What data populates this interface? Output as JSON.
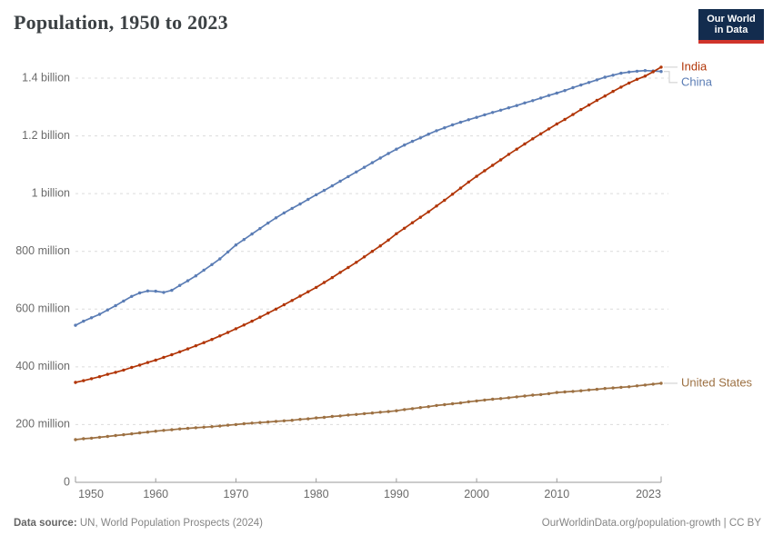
{
  "header": {
    "title": "Population, 1950 to 2023",
    "logo": {
      "line1": "Our World",
      "line2": "in Data"
    }
  },
  "footer": {
    "source_label": "Data source:",
    "source_text": " UN, World Population Prospects (2024)",
    "right_text": "OurWorldinData.org/population-growth | CC BY"
  },
  "colors": {
    "india": "#b13507",
    "china": "#5b7db5",
    "united_states": "#9d7143",
    "grid": "#dcdcdc",
    "axis": "#9a9a9a",
    "tick_text": "#6b6b6b",
    "connector": "#cccccc",
    "logo_bg": "#132c4e",
    "logo_red": "#d0342c"
  },
  "chart_data": {
    "type": "line",
    "title": "Population, 1950 to 2023",
    "unit": "people",
    "xlabel": "",
    "ylabel": "",
    "xlim": [
      1950,
      2023
    ],
    "ylim": [
      0,
      1400000000
    ],
    "grid": "horizontal-dashed",
    "legend_position": "right-end-labels",
    "xticks": [
      1950,
      1960,
      1970,
      1980,
      1990,
      2000,
      2010,
      2023
    ],
    "yticks_millions": [
      0,
      200,
      400,
      600,
      800,
      1000,
      1200,
      1400
    ],
    "ytick_labels": [
      "0",
      "200 million",
      "400 million",
      "600 million",
      "800 million",
      "1 billion",
      "1.2 billion",
      "1.4 billion"
    ],
    "x": [
      1950,
      1951,
      1952,
      1953,
      1954,
      1955,
      1956,
      1957,
      1958,
      1959,
      1960,
      1961,
      1962,
      1963,
      1964,
      1965,
      1966,
      1967,
      1968,
      1969,
      1970,
      1971,
      1972,
      1973,
      1974,
      1975,
      1976,
      1977,
      1978,
      1979,
      1980,
      1981,
      1982,
      1983,
      1984,
      1985,
      1986,
      1987,
      1988,
      1989,
      1990,
      1991,
      1992,
      1993,
      1994,
      1995,
      1996,
      1997,
      1998,
      1999,
      2000,
      2001,
      2002,
      2003,
      2004,
      2005,
      2006,
      2007,
      2008,
      2009,
      2010,
      2011,
      2012,
      2013,
      2014,
      2015,
      2016,
      2017,
      2018,
      2019,
      2020,
      2021,
      2022,
      2023
    ],
    "series": [
      {
        "name": "India",
        "color": "#b13507",
        "values_millions": [
          346,
          352,
          359,
          366,
          374,
          381,
          389,
          398,
          406,
          415,
          423,
          433,
          442,
          452,
          462,
          473,
          484,
          495,
          507,
          519,
          532,
          545,
          558,
          572,
          586,
          600,
          615,
          630,
          645,
          660,
          675,
          692,
          709,
          727,
          744,
          762,
          781,
          800,
          819,
          839,
          861,
          880,
          899,
          918,
          937,
          957,
          977,
          998,
          1019,
          1040,
          1060,
          1079,
          1098,
          1117,
          1136,
          1154,
          1172,
          1190,
          1207,
          1224,
          1241,
          1257,
          1274,
          1291,
          1307,
          1323,
          1338,
          1354,
          1369,
          1383,
          1396,
          1407,
          1422,
          1438
        ]
      },
      {
        "name": "China",
        "color": "#5b7db5",
        "values_millions": [
          544,
          558,
          570,
          582,
          597,
          612,
          628,
          644,
          656,
          663,
          662,
          658,
          665,
          682,
          698,
          715,
          735,
          754,
          774,
          798,
          822,
          841,
          860,
          879,
          898,
          916,
          933,
          949,
          964,
          980,
          996,
          1011,
          1027,
          1043,
          1059,
          1075,
          1091,
          1107,
          1123,
          1139,
          1154,
          1168,
          1181,
          1193,
          1206,
          1218,
          1228,
          1238,
          1247,
          1256,
          1264,
          1273,
          1281,
          1289,
          1297,
          1305,
          1314,
          1322,
          1331,
          1340,
          1348,
          1357,
          1367,
          1376,
          1385,
          1394,
          1403,
          1410,
          1417,
          1421,
          1424,
          1426,
          1425,
          1423
        ]
      },
      {
        "name": "United States",
        "color": "#9d7143",
        "values_millions": [
          148,
          151,
          153,
          156,
          159,
          162,
          165,
          168,
          171,
          174,
          177,
          180,
          182,
          185,
          187,
          189,
          191,
          193,
          195,
          198,
          200,
          203,
          205,
          207,
          209,
          211,
          213,
          215,
          218,
          220,
          223,
          225,
          228,
          230,
          233,
          235,
          238,
          240,
          243,
          245,
          248,
          252,
          255,
          259,
          262,
          266,
          269,
          272,
          275,
          279,
          282,
          285,
          288,
          290,
          293,
          296,
          299,
          302,
          304,
          307,
          311,
          313,
          315,
          317,
          320,
          322,
          325,
          327,
          329,
          331,
          334,
          337,
          340,
          343
        ]
      }
    ]
  }
}
